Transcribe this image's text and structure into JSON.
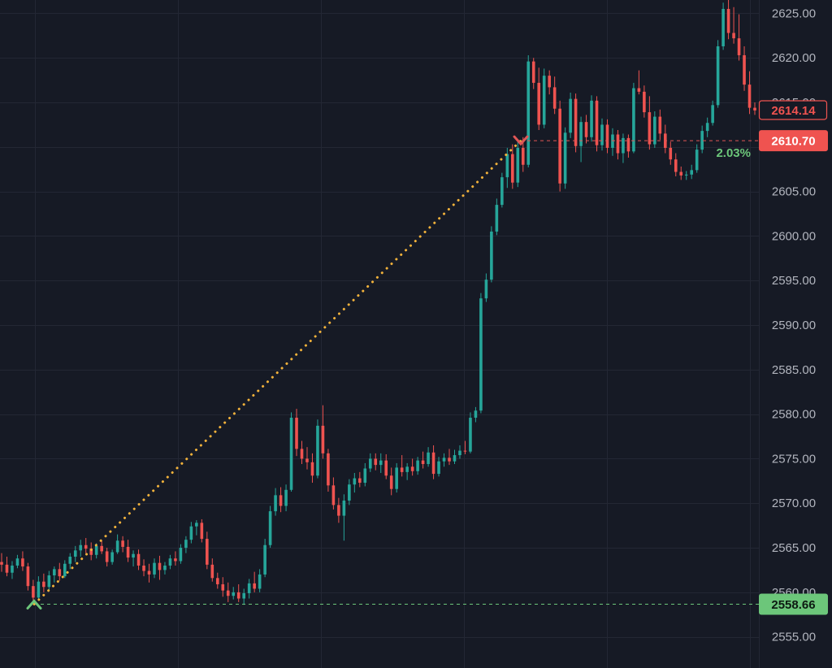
{
  "chart_data": {
    "type": "candlestick",
    "title": "",
    "y_axis": {
      "range": [
        2551.5,
        2626.5
      ],
      "ticks": [
        "2625.00",
        "2620.00",
        "2615.00",
        "2610.00",
        "2605.00",
        "2600.00",
        "2595.00",
        "2590.00",
        "2585.00",
        "2580.00",
        "2575.00",
        "2570.00",
        "2565.00",
        "2560.00",
        "2555.00"
      ],
      "tick_values": [
        2625,
        2620,
        2615,
        2610,
        2605,
        2600,
        2595,
        2590,
        2585,
        2580,
        2575,
        2570,
        2565,
        2560,
        2555
      ]
    },
    "grid": true,
    "colors": {
      "background": "#161a25",
      "up": "#26a69a",
      "down": "#ef5350",
      "grid": "#232734",
      "measure_line": "#f2b23b",
      "low_line": "#6cc67a",
      "high_line": "#e05656"
    },
    "price_tags": [
      {
        "label": "2614.14",
        "value": 2614.14,
        "style": "outline",
        "color": "#ef5350"
      },
      {
        "label": "2610.70",
        "value": 2610.7,
        "style": "filled",
        "color": "#ef5350"
      },
      {
        "label": "2558.66",
        "value": 2558.66,
        "style": "filled",
        "color": "#6cc67a"
      }
    ],
    "measure": {
      "start_value": 2558.66,
      "end_value": 2610.7,
      "change_label": "2.03%"
    },
    "candles": [
      [
        2563.4,
        2564.4,
        2562.3,
        2563.1
      ],
      [
        2563.1,
        2564.0,
        2561.8,
        2562.2
      ],
      [
        2562.2,
        2563.5,
        2561.5,
        2563.0
      ],
      [
        2563.0,
        2564.2,
        2562.7,
        2563.8
      ],
      [
        2563.8,
        2564.6,
        2562.4,
        2562.9
      ],
      [
        2562.9,
        2563.3,
        2560.2,
        2560.7
      ],
      [
        2560.7,
        2561.4,
        2558.7,
        2559.4
      ],
      [
        2559.4,
        2561.8,
        2559.1,
        2561.2
      ],
      [
        2561.2,
        2562.1,
        2560.0,
        2560.6
      ],
      [
        2560.6,
        2562.4,
        2560.2,
        2561.9
      ],
      [
        2561.9,
        2562.9,
        2561.1,
        2562.6
      ],
      [
        2562.6,
        2563.3,
        2561.3,
        2561.8
      ],
      [
        2561.8,
        2563.6,
        2561.6,
        2563.2
      ],
      [
        2563.2,
        2564.4,
        2562.6,
        2564.0
      ],
      [
        2564.0,
        2565.2,
        2563.4,
        2564.7
      ],
      [
        2564.7,
        2565.9,
        2564.0,
        2565.3
      ],
      [
        2565.3,
        2566.1,
        2564.4,
        2564.9
      ],
      [
        2564.9,
        2565.6,
        2563.6,
        2564.2
      ],
      [
        2564.2,
        2565.5,
        2563.8,
        2565.2
      ],
      [
        2565.2,
        2565.8,
        2564.3,
        2564.6
      ],
      [
        2564.6,
        2565.0,
        2562.9,
        2563.4
      ],
      [
        2563.4,
        2564.8,
        2563.1,
        2564.5
      ],
      [
        2564.5,
        2566.5,
        2564.3,
        2565.8
      ],
      [
        2565.8,
        2566.3,
        2564.5,
        2565.1
      ],
      [
        2565.1,
        2565.9,
        2563.4,
        2563.9
      ],
      [
        2563.9,
        2564.7,
        2562.9,
        2564.3
      ],
      [
        2564.3,
        2564.8,
        2562.5,
        2563.0
      ],
      [
        2563.0,
        2563.7,
        2561.8,
        2562.4
      ],
      [
        2562.4,
        2563.2,
        2561.1,
        2562.0
      ],
      [
        2562.0,
        2563.8,
        2561.6,
        2563.3
      ],
      [
        2563.3,
        2564.1,
        2561.4,
        2562.5
      ],
      [
        2562.5,
        2563.4,
        2562.0,
        2563.0
      ],
      [
        2563.0,
        2564.2,
        2562.6,
        2563.8
      ],
      [
        2563.8,
        2564.6,
        2563.0,
        2563.5
      ],
      [
        2563.5,
        2565.4,
        2563.2,
        2565.0
      ],
      [
        2565.0,
        2566.3,
        2564.4,
        2565.9
      ],
      [
        2565.9,
        2567.9,
        2565.5,
        2567.4
      ],
      [
        2567.4,
        2568.1,
        2566.4,
        2567.8
      ],
      [
        2567.8,
        2568.2,
        2565.6,
        2566.0
      ],
      [
        2566.0,
        2566.8,
        2562.6,
        2563.1
      ],
      [
        2563.1,
        2563.8,
        2561.2,
        2561.6
      ],
      [
        2561.6,
        2562.2,
        2560.4,
        2560.9
      ],
      [
        2560.9,
        2561.7,
        2559.5,
        2560.2
      ],
      [
        2560.2,
        2561.1,
        2558.9,
        2559.6
      ],
      [
        2559.6,
        2560.6,
        2559.2,
        2560.0
      ],
      [
        2560.0,
        2560.9,
        2558.9,
        2559.3
      ],
      [
        2559.3,
        2560.4,
        2558.6,
        2559.9
      ],
      [
        2559.9,
        2561.5,
        2559.3,
        2561.0
      ],
      [
        2561.0,
        2562.3,
        2560.0,
        2560.4
      ],
      [
        2560.4,
        2562.6,
        2560.0,
        2562.0
      ],
      [
        2562.0,
        2566.0,
        2561.7,
        2565.3
      ],
      [
        2565.3,
        2569.7,
        2565.0,
        2569.1
      ],
      [
        2569.1,
        2571.7,
        2568.6,
        2570.9
      ],
      [
        2570.9,
        2571.8,
        2569.0,
        2569.7
      ],
      [
        2569.7,
        2572.1,
        2569.1,
        2571.5
      ],
      [
        2571.5,
        2580.2,
        2571.3,
        2579.6
      ],
      [
        2579.6,
        2580.6,
        2575.3,
        2576.1
      ],
      [
        2576.1,
        2577.0,
        2574.4,
        2575.0
      ],
      [
        2575.0,
        2576.3,
        2573.8,
        2574.6
      ],
      [
        2574.6,
        2575.6,
        2572.3,
        2573.1
      ],
      [
        2573.1,
        2579.4,
        2572.8,
        2578.7
      ],
      [
        2578.7,
        2581.0,
        2575.0,
        2575.6
      ],
      [
        2575.6,
        2576.1,
        2571.3,
        2572.0
      ],
      [
        2572.0,
        2572.9,
        2569.3,
        2569.8
      ],
      [
        2569.8,
        2570.6,
        2567.8,
        2568.6
      ],
      [
        2568.6,
        2571.0,
        2565.8,
        2570.3
      ],
      [
        2570.3,
        2572.7,
        2569.8,
        2572.1
      ],
      [
        2572.1,
        2573.4,
        2571.2,
        2572.8
      ],
      [
        2572.8,
        2573.5,
        2571.8,
        2572.3
      ],
      [
        2572.3,
        2574.5,
        2571.9,
        2573.9
      ],
      [
        2573.9,
        2575.6,
        2573.5,
        2575.0
      ],
      [
        2575.0,
        2575.6,
        2573.7,
        2574.3
      ],
      [
        2574.3,
        2575.6,
        2573.4,
        2574.8
      ],
      [
        2574.8,
        2575.5,
        2572.7,
        2573.1
      ],
      [
        2573.1,
        2574.0,
        2570.9,
        2571.6
      ],
      [
        2571.6,
        2574.5,
        2571.2,
        2574.0
      ],
      [
        2574.0,
        2575.4,
        2573.0,
        2573.5
      ],
      [
        2573.5,
        2574.5,
        2572.6,
        2574.1
      ],
      [
        2574.1,
        2575.0,
        2573.1,
        2573.6
      ],
      [
        2573.6,
        2575.2,
        2573.2,
        2574.8
      ],
      [
        2574.8,
        2575.8,
        2573.9,
        2574.4
      ],
      [
        2574.4,
        2576.3,
        2574.1,
        2575.7
      ],
      [
        2575.7,
        2576.5,
        2572.7,
        2573.3
      ],
      [
        2573.3,
        2575.2,
        2573.0,
        2574.7
      ],
      [
        2574.7,
        2575.6,
        2574.1,
        2575.1
      ],
      [
        2575.1,
        2576.1,
        2574.3,
        2574.7
      ],
      [
        2574.7,
        2576.0,
        2574.4,
        2575.4
      ],
      [
        2575.4,
        2576.5,
        2575.0,
        2575.9
      ],
      [
        2575.9,
        2577.0,
        2575.5,
        2575.8
      ],
      [
        2575.8,
        2580.2,
        2575.6,
        2579.6
      ],
      [
        2579.6,
        2580.8,
        2579.1,
        2580.4
      ],
      [
        2580.4,
        2593.6,
        2580.1,
        2593.0
      ],
      [
        2593.0,
        2595.8,
        2592.6,
        2595.1
      ],
      [
        2595.1,
        2601.1,
        2594.8,
        2600.5
      ],
      [
        2600.5,
        2604.2,
        2600.1,
        2603.5
      ],
      [
        2603.5,
        2607.1,
        2603.2,
        2606.6
      ],
      [
        2606.6,
        2609.9,
        2605.4,
        2609.2
      ],
      [
        2609.2,
        2610.3,
        2605.3,
        2606.0
      ],
      [
        2606.0,
        2610.6,
        2605.5,
        2609.9
      ],
      [
        2609.9,
        2611.1,
        2607.2,
        2608.0
      ],
      [
        2608.0,
        2620.3,
        2607.7,
        2619.6
      ],
      [
        2619.6,
        2620.0,
        2616.5,
        2617.2
      ],
      [
        2617.2,
        2618.9,
        2611.9,
        2612.5
      ],
      [
        2612.5,
        2618.8,
        2612.1,
        2618.0
      ],
      [
        2618.0,
        2618.6,
        2615.9,
        2616.7
      ],
      [
        2616.7,
        2617.9,
        2613.7,
        2614.3
      ],
      [
        2614.3,
        2615.2,
        2605.0,
        2605.9
      ],
      [
        2605.9,
        2612.2,
        2605.3,
        2611.6
      ],
      [
        2611.6,
        2616.1,
        2611.0,
        2615.4
      ],
      [
        2615.4,
        2616.0,
        2609.4,
        2610.1
      ],
      [
        2610.1,
        2613.4,
        2608.3,
        2612.8
      ],
      [
        2612.8,
        2613.6,
        2610.4,
        2611.1
      ],
      [
        2611.1,
        2615.8,
        2610.6,
        2615.2
      ],
      [
        2615.2,
        2615.7,
        2609.5,
        2610.2
      ],
      [
        2610.2,
        2613.2,
        2609.6,
        2612.5
      ],
      [
        2612.5,
        2613.1,
        2609.3,
        2609.9
      ],
      [
        2609.9,
        2612.1,
        2609.0,
        2611.4
      ],
      [
        2611.4,
        2611.9,
        2608.6,
        2609.3
      ],
      [
        2609.3,
        2611.5,
        2608.2,
        2611.0
      ],
      [
        2611.0,
        2611.4,
        2608.8,
        2609.5
      ],
      [
        2609.5,
        2617.2,
        2609.3,
        2616.6
      ],
      [
        2616.6,
        2618.6,
        2615.9,
        2616.2
      ],
      [
        2616.2,
        2616.9,
        2613.3,
        2613.9
      ],
      [
        2613.9,
        2615.7,
        2609.7,
        2610.3
      ],
      [
        2610.3,
        2614.0,
        2609.9,
        2613.4
      ],
      [
        2613.4,
        2614.2,
        2610.8,
        2611.5
      ],
      [
        2611.5,
        2612.5,
        2609.3,
        2609.9
      ],
      [
        2609.9,
        2610.6,
        2608.0,
        2608.6
      ],
      [
        2608.6,
        2609.3,
        2606.7,
        2607.2
      ],
      [
        2607.2,
        2607.8,
        2606.3,
        2606.8
      ],
      [
        2606.8,
        2607.3,
        2606.3,
        2606.9
      ],
      [
        2606.9,
        2608.0,
        2606.4,
        2607.4
      ],
      [
        2607.4,
        2610.3,
        2607.1,
        2609.7
      ],
      [
        2609.7,
        2612.4,
        2609.3,
        2611.8
      ],
      [
        2611.8,
        2613.3,
        2611.1,
        2612.7
      ],
      [
        2612.7,
        2615.2,
        2612.4,
        2614.7
      ],
      [
        2614.7,
        2622.0,
        2614.4,
        2621.3
      ],
      [
        2621.3,
        2626.2,
        2620.9,
        2625.5
      ],
      [
        2625.5,
        2626.8,
        2622.1,
        2622.8
      ],
      [
        2622.8,
        2625.7,
        2621.6,
        2622.2
      ],
      [
        2622.2,
        2624.9,
        2619.7,
        2620.3
      ],
      [
        2620.3,
        2621.3,
        2616.3,
        2617.0
      ],
      [
        2617.0,
        2618.5,
        2613.7,
        2614.4
      ],
      [
        2614.4,
        2615.0,
        2613.6,
        2614.1
      ]
    ]
  }
}
